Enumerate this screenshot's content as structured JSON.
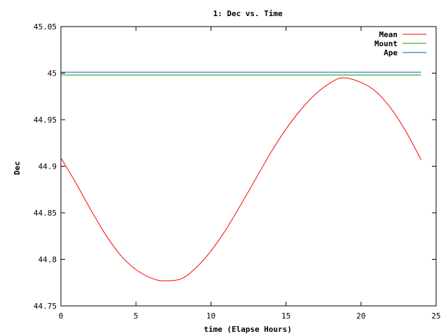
{
  "chart_data": {
    "type": "line",
    "title": "1: Dec vs. Time",
    "xlabel": "time (Elapse Hours)",
    "ylabel": "Dec",
    "xlim": [
      0,
      25
    ],
    "ylim": [
      44.75,
      45.05
    ],
    "x_ticks": [
      0,
      5,
      10,
      15,
      20,
      25
    ],
    "y_ticks": [
      44.75,
      44.8,
      44.85,
      44.9,
      44.95,
      45,
      45.05
    ],
    "x_tick_labels": [
      "0",
      "5",
      "10",
      "15",
      "20",
      "25"
    ],
    "y_tick_labels": [
      "44.75",
      "44.8",
      "44.85",
      "44.9",
      "44.95",
      "45",
      "45.05"
    ],
    "grid": false,
    "legend_position": "top-right",
    "series": [
      {
        "name": "Mean",
        "color": "#ff0000",
        "x": [
          0,
          1,
          2,
          3,
          4,
          5,
          6,
          6.8,
          8,
          9,
          10,
          11,
          12,
          13,
          14,
          15,
          16,
          17,
          18,
          18.8,
          20,
          21,
          22,
          23,
          24
        ],
        "y": [
          44.909,
          44.882,
          44.853,
          44.826,
          44.804,
          44.789,
          44.78,
          44.777,
          44.779,
          44.791,
          44.809,
          44.832,
          44.859,
          44.887,
          44.915,
          44.94,
          44.961,
          44.978,
          44.99,
          44.995,
          44.99,
          44.98,
          44.962,
          44.937,
          44.907
        ]
      },
      {
        "name": "Mount",
        "color": "#00a000",
        "x": [
          0,
          24
        ],
        "y": [
          44.998,
          44.998
        ]
      },
      {
        "name": "Ape",
        "color": "#0060ad",
        "x": [
          0,
          24
        ],
        "y": [
          45.001,
          45.001
        ]
      }
    ]
  }
}
